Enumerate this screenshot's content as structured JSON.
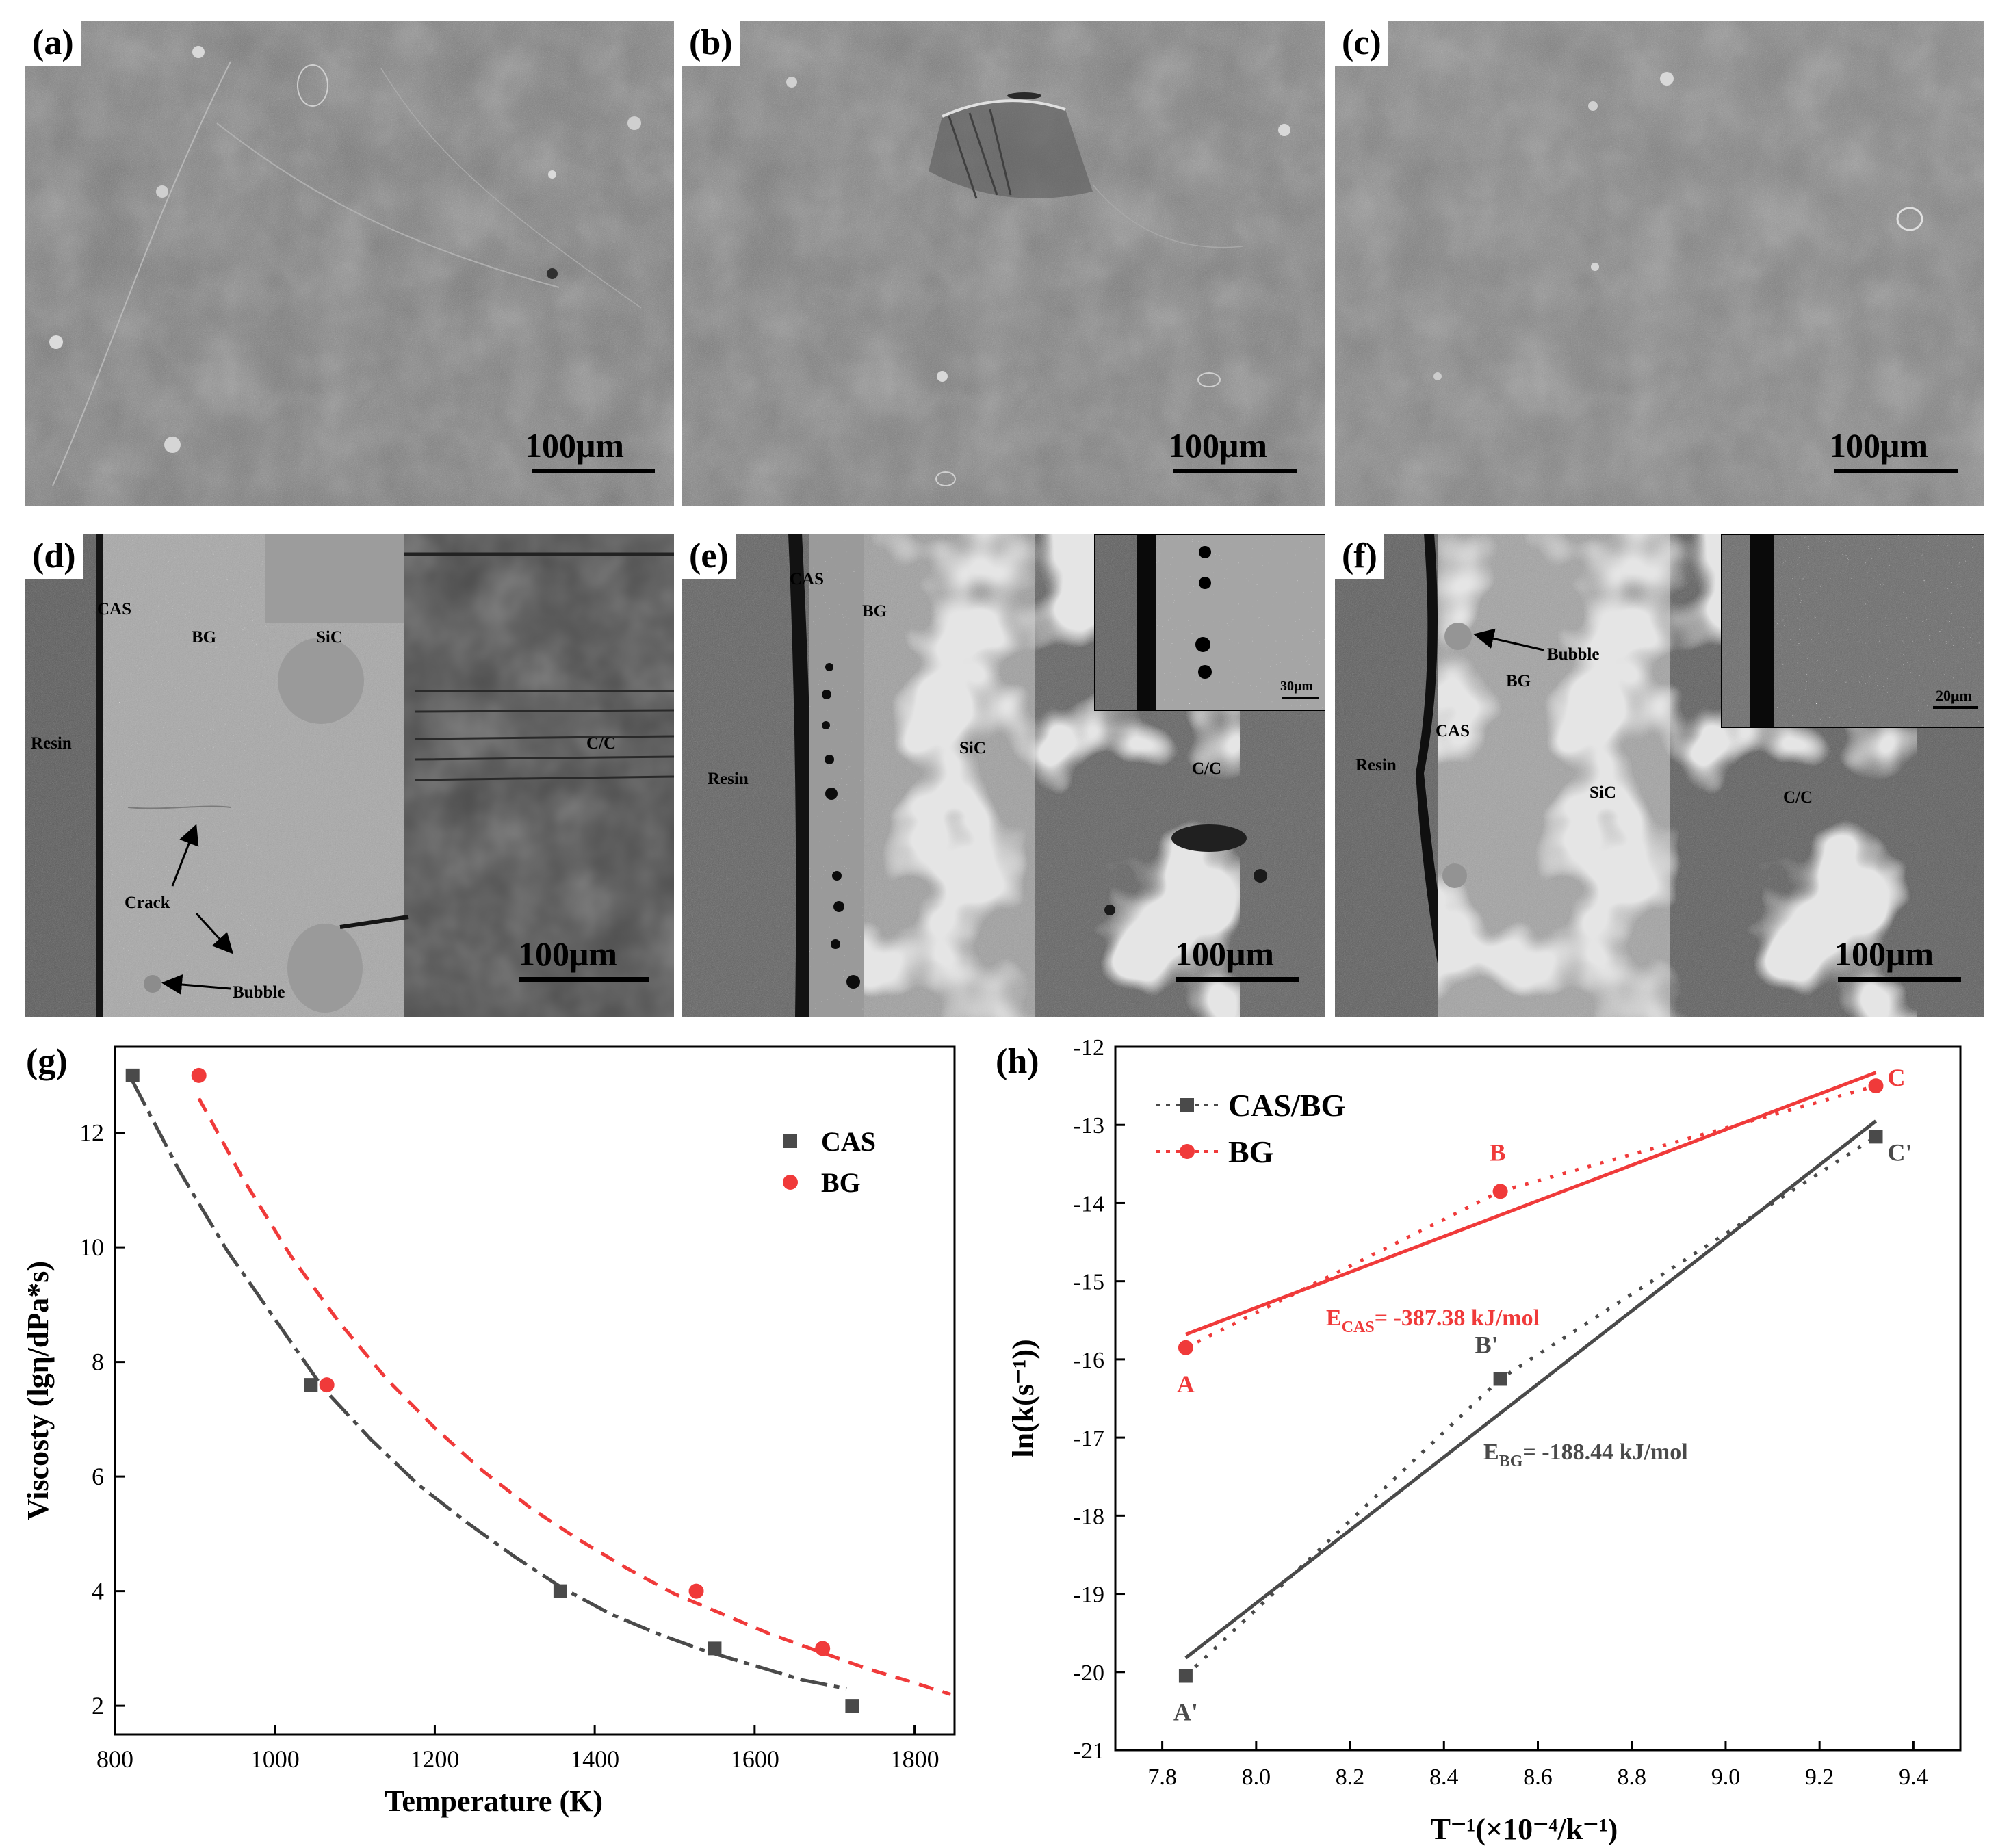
{
  "panels": {
    "a": {
      "label": "(a)",
      "scale": "100μm"
    },
    "b": {
      "label": "(b)",
      "scale": "100μm"
    },
    "c": {
      "label": "(c)",
      "scale": "100μm"
    },
    "d": {
      "label": "(d)",
      "scale": "100μm",
      "annotations": {
        "cas": "CAS",
        "bg": "BG",
        "sic": "SiC",
        "resin": "Resin",
        "cc": "C/C",
        "crack": "Crack",
        "bubble": "Bubble"
      }
    },
    "e": {
      "label": "(e)",
      "scale": "100μm",
      "inset_scale": "30μm",
      "annotations": {
        "cas": "CAS",
        "bg": "BG",
        "sic": "SiC",
        "resin": "Resin",
        "cc": "C/C"
      }
    },
    "f": {
      "label": "(f)",
      "scale": "100μm",
      "inset_scale": "20μm",
      "annotations": {
        "bubble": "Bubble",
        "bg": "BG",
        "cas": "CAS",
        "resin": "Resin",
        "sic": "SiC",
        "cc": "C/C"
      }
    }
  },
  "colors": {
    "cas": "#4a4a4a",
    "bg": "#f03a3a"
  },
  "chart_data": [
    {
      "panel_label": "(g)",
      "type": "scatter",
      "xlabel": "Temperature (K)",
      "ylabel": "Viscosty (lgη/dPa*s)",
      "xlim": [
        800,
        1850
      ],
      "ylim": [
        1.5,
        13.5
      ],
      "xticks": [
        800,
        1000,
        1200,
        1400,
        1600,
        1800
      ],
      "yticks": [
        2,
        4,
        6,
        8,
        10,
        12
      ],
      "legend_position": "top-right",
      "series": [
        {
          "name": "CAS",
          "marker": "square",
          "color": "#4a4a4a",
          "x": [
            822,
            1045,
            1357,
            1550,
            1722
          ],
          "y": [
            13,
            7.6,
            4,
            3,
            2
          ],
          "fit_x": [
            822,
            880,
            940,
            1000,
            1060,
            1120,
            1180,
            1240,
            1300,
            1360,
            1420,
            1480,
            1540,
            1600,
            1660,
            1715
          ],
          "fit_y": [
            12.9,
            11.35,
            9.95,
            8.75,
            7.55,
            6.65,
            5.85,
            5.2,
            4.6,
            4.05,
            3.6,
            3.25,
            2.95,
            2.7,
            2.45,
            2.3
          ]
        },
        {
          "name": "BG",
          "marker": "circle",
          "color": "#f03a3a",
          "x": [
            905,
            1065,
            1527,
            1685
          ],
          "y": [
            13,
            7.6,
            4,
            3
          ],
          "fit_x": [
            905,
            960,
            1020,
            1080,
            1140,
            1200,
            1260,
            1320,
            1380,
            1440,
            1500,
            1560,
            1620,
            1680,
            1740,
            1800,
            1845
          ],
          "fit_y": [
            12.6,
            11.2,
            9.85,
            8.7,
            7.7,
            6.85,
            6.1,
            5.45,
            4.9,
            4.4,
            3.95,
            3.6,
            3.25,
            2.95,
            2.65,
            2.4,
            2.2
          ]
        }
      ]
    },
    {
      "panel_label": "(h)",
      "type": "scatter",
      "xlabel": "T⁻¹(×10⁻⁴/k⁻¹)",
      "ylabel": "ln(k(s⁻¹))",
      "xlim": [
        7.7,
        9.5
      ],
      "ylim": [
        -21,
        -12
      ],
      "xticks": [
        7.8,
        8.0,
        8.2,
        8.4,
        8.6,
        8.8,
        9.0,
        9.2,
        9.4
      ],
      "yticks": [
        -12,
        -13,
        -14,
        -15,
        -16,
        -17,
        -18,
        -19,
        -20,
        -21
      ],
      "legend_position": "top-left",
      "series": [
        {
          "name": "CAS/BG",
          "marker": "square",
          "color": "#4a4a4a",
          "x": [
            7.85,
            8.52,
            9.32
          ],
          "y": [
            -20.05,
            -16.25,
            -13.15
          ],
          "point_labels": [
            "A'",
            "B'",
            "C'"
          ],
          "fit_line": {
            "x": [
              7.85,
              9.32
            ],
            "y": [
              -19.82,
              -12.95
            ]
          }
        },
        {
          "name": "BG",
          "marker": "circle",
          "color": "#f03a3a",
          "x": [
            7.85,
            8.52,
            9.32
          ],
          "y": [
            -15.85,
            -13.85,
            -12.5
          ],
          "point_labels": [
            "A",
            "B",
            "C"
          ],
          "fit_line": {
            "x": [
              7.85,
              9.32
            ],
            "y": [
              -15.68,
              -12.33
            ]
          }
        }
      ],
      "annotations": {
        "e_cas_main": "E",
        "e_cas_sub": "CAS",
        "e_cas_value": "= -387.38 kJ/mol",
        "e_bg_main": "E",
        "e_bg_sub": "BG",
        "e_bg_value": "= -188.44 kJ/mol"
      }
    }
  ]
}
